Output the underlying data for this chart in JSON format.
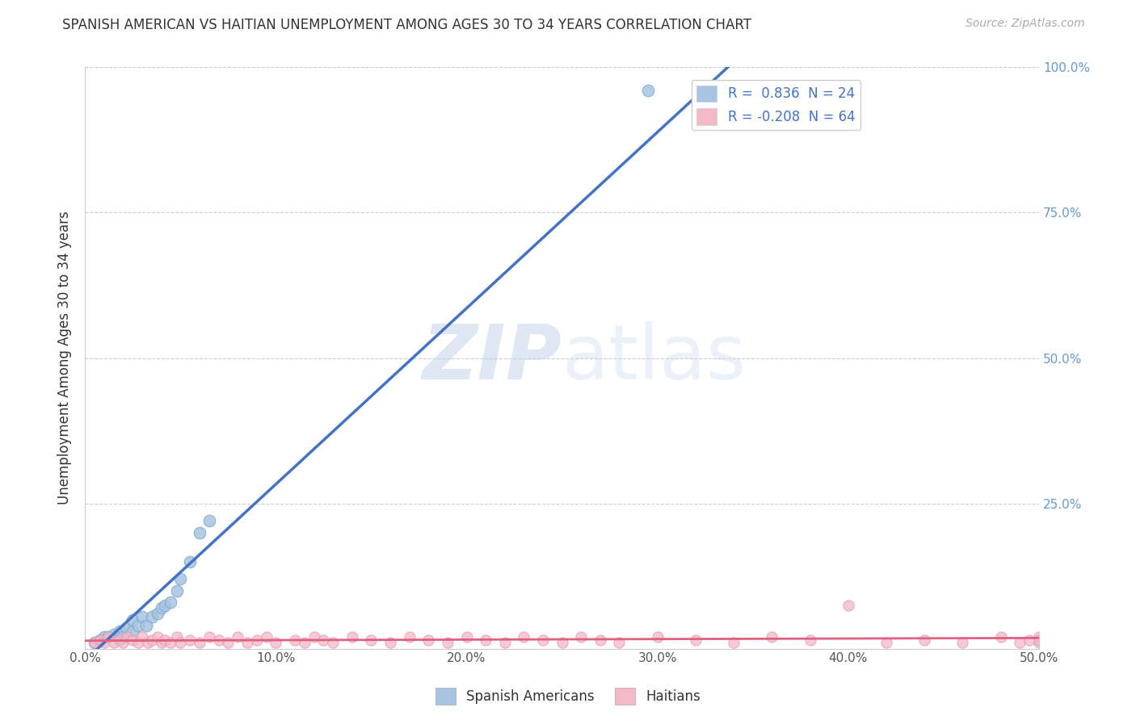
{
  "title": "SPANISH AMERICAN VS HAITIAN UNEMPLOYMENT AMONG AGES 30 TO 34 YEARS CORRELATION CHART",
  "source_text": "Source: ZipAtlas.com",
  "ylabel": "Unemployment Among Ages 30 to 34 years",
  "watermark": "ZIPatlas",
  "xlim": [
    0.0,
    0.5
  ],
  "ylim": [
    0.0,
    1.0
  ],
  "xticks": [
    0.0,
    0.1,
    0.2,
    0.3,
    0.4,
    0.5
  ],
  "xticklabels": [
    "0.0%",
    "10.0%",
    "20.0%",
    "30.0%",
    "40.0%",
    "50.0%"
  ],
  "yticks": [
    0.0,
    0.25,
    0.5,
    0.75,
    1.0
  ],
  "yticklabels_right": [
    "",
    "25.0%",
    "50.0%",
    "75.0%",
    "100.0%"
  ],
  "blue_R": 0.836,
  "blue_N": 24,
  "pink_R": -0.208,
  "pink_N": 64,
  "blue_color": "#a8c4e0",
  "blue_edge_color": "#7aaad0",
  "blue_line_color": "#4472c4",
  "pink_color": "#f4b8c8",
  "pink_edge_color": "#e09ab0",
  "pink_line_color": "#e06080",
  "legend_blue_label": "R =  0.836  N = 24",
  "legend_pink_label": "R = -0.208  N = 64",
  "background_color": "#ffffff",
  "title_fontsize": 12,
  "axis_fontsize": 12,
  "tick_fontsize": 11,
  "right_tick_color": "#6699cc",
  "spanish_x": [
    0.005,
    0.008,
    0.01,
    0.012,
    0.015,
    0.018,
    0.02,
    0.022,
    0.025,
    0.025,
    0.028,
    0.03,
    0.032,
    0.035,
    0.038,
    0.04,
    0.042,
    0.045,
    0.048,
    0.05,
    0.055,
    0.06,
    0.065,
    0.295
  ],
  "spanish_y": [
    0.01,
    0.015,
    0.02,
    0.02,
    0.025,
    0.03,
    0.02,
    0.035,
    0.03,
    0.05,
    0.04,
    0.055,
    0.04,
    0.055,
    0.06,
    0.07,
    0.075,
    0.08,
    0.1,
    0.12,
    0.15,
    0.2,
    0.22,
    0.96
  ],
  "haitian_x": [
    0.005,
    0.008,
    0.01,
    0.012,
    0.015,
    0.018,
    0.02,
    0.022,
    0.025,
    0.028,
    0.03,
    0.033,
    0.035,
    0.038,
    0.04,
    0.042,
    0.045,
    0.048,
    0.05,
    0.055,
    0.06,
    0.065,
    0.07,
    0.075,
    0.08,
    0.085,
    0.09,
    0.095,
    0.1,
    0.11,
    0.115,
    0.12,
    0.125,
    0.13,
    0.14,
    0.15,
    0.16,
    0.17,
    0.18,
    0.19,
    0.2,
    0.21,
    0.22,
    0.23,
    0.24,
    0.25,
    0.26,
    0.27,
    0.28,
    0.3,
    0.32,
    0.34,
    0.36,
    0.38,
    0.4,
    0.42,
    0.44,
    0.46,
    0.48,
    0.49,
    0.495,
    0.5,
    0.5,
    0.5
  ],
  "haitian_y": [
    0.01,
    0.015,
    0.01,
    0.02,
    0.01,
    0.015,
    0.01,
    0.02,
    0.015,
    0.01,
    0.02,
    0.01,
    0.015,
    0.02,
    0.01,
    0.015,
    0.01,
    0.02,
    0.01,
    0.015,
    0.01,
    0.02,
    0.015,
    0.01,
    0.02,
    0.01,
    0.015,
    0.02,
    0.01,
    0.015,
    0.01,
    0.02,
    0.015,
    0.01,
    0.02,
    0.015,
    0.01,
    0.02,
    0.015,
    0.01,
    0.02,
    0.015,
    0.01,
    0.02,
    0.015,
    0.01,
    0.02,
    0.015,
    0.01,
    0.02,
    0.015,
    0.01,
    0.02,
    0.015,
    0.075,
    0.01,
    0.015,
    0.01,
    0.02,
    0.01,
    0.015,
    0.01,
    0.02,
    0.015
  ]
}
